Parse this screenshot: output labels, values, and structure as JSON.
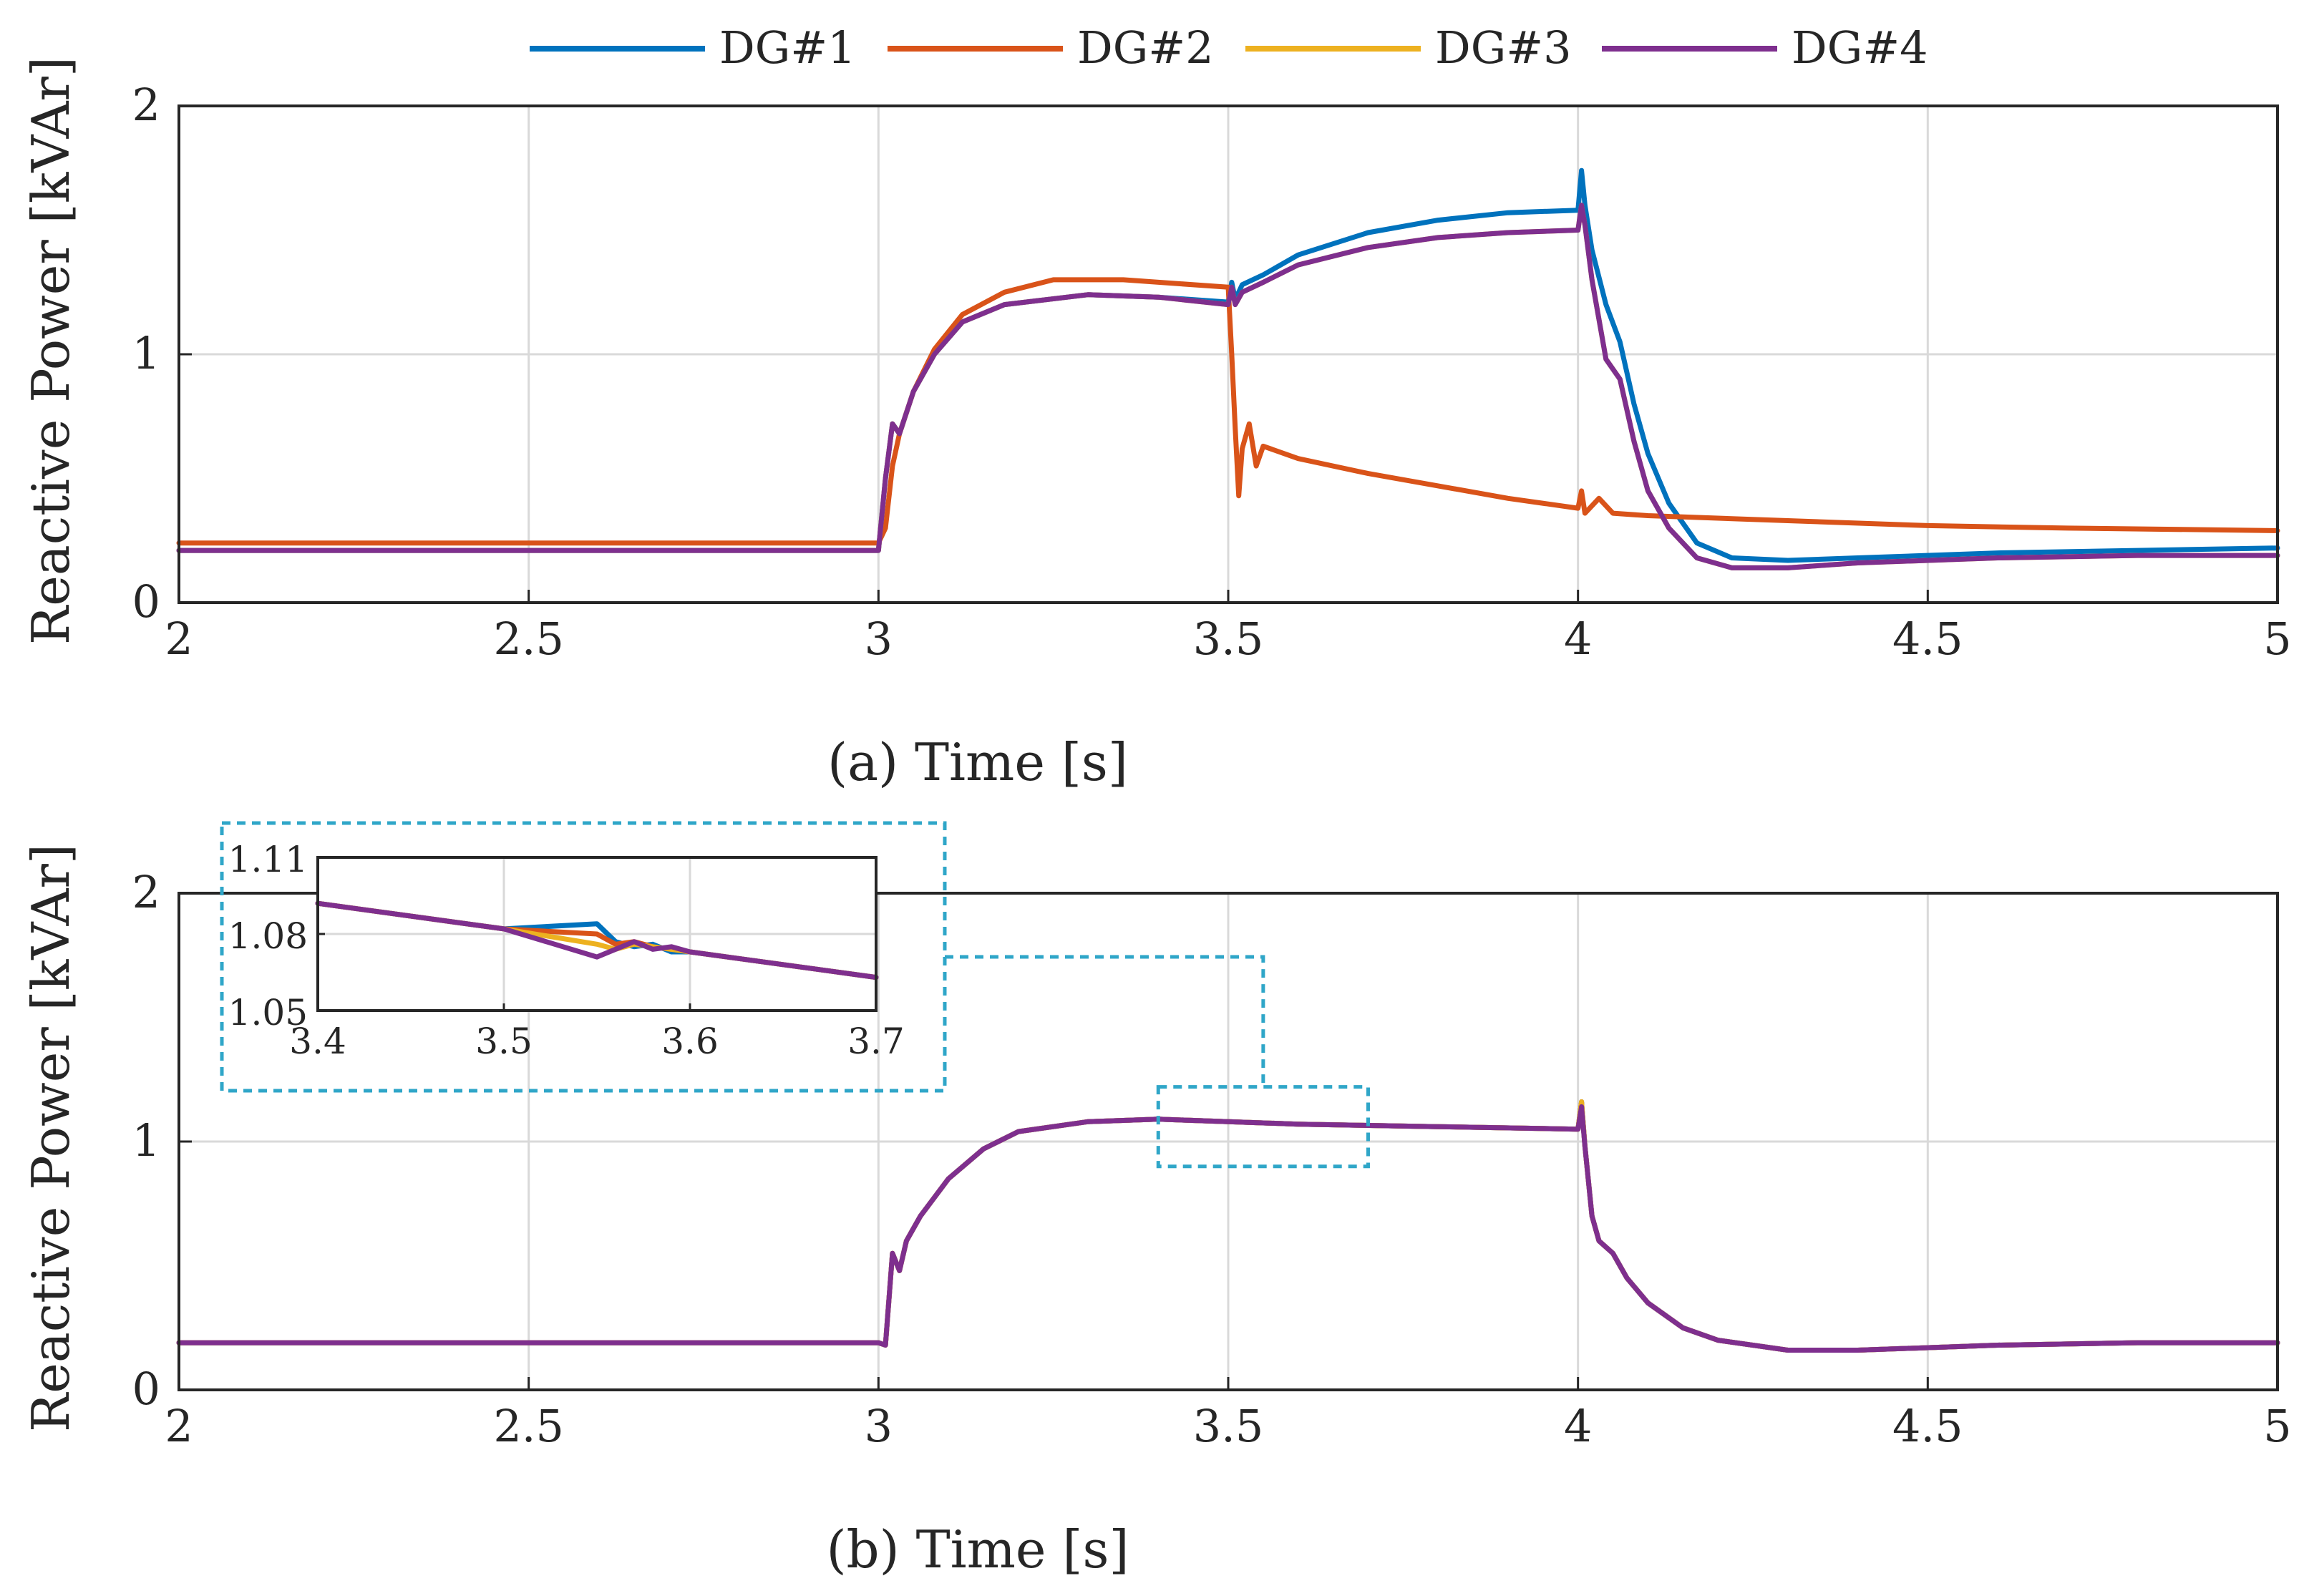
{
  "legend": [
    {
      "name": "DG#1",
      "color": "#0072BD"
    },
    {
      "name": "DG#2",
      "color": "#D95319"
    },
    {
      "name": "DG#3",
      "color": "#EDB120"
    },
    {
      "name": "DG#4",
      "color": "#7E2F8E"
    }
  ],
  "chart_data": [
    {
      "id": "a",
      "type": "line",
      "caption": "(a) Time [s]",
      "ylabel": "Reactive Power [kVAr]",
      "xlim": [
        2,
        5
      ],
      "ylim": [
        0,
        2
      ],
      "xticks": [
        2,
        2.5,
        3,
        3.5,
        4,
        4.5,
        5
      ],
      "xtick_labels": [
        "2",
        "2.5",
        "3",
        "3.5",
        "4",
        "4.5",
        "5"
      ],
      "yticks": [
        0,
        1,
        2
      ],
      "ytick_labels": [
        "0",
        "1",
        "2"
      ],
      "grid": true,
      "series": [
        {
          "name": "DG#1",
          "color": "#0072BD",
          "x": [
            2,
            3,
            3.01,
            3.02,
            3.03,
            3.05,
            3.08,
            3.12,
            3.18,
            3.3,
            3.4,
            3.5,
            3.505,
            3.51,
            3.52,
            3.55,
            3.6,
            3.7,
            3.8,
            3.9,
            4.0,
            4.005,
            4.01,
            4.02,
            4.04,
            4.06,
            4.08,
            4.1,
            4.13,
            4.17,
            4.22,
            4.3,
            4.4,
            4.6,
            4.8,
            5
          ],
          "y": [
            0.21,
            0.21,
            0.5,
            0.72,
            0.68,
            0.85,
            1.0,
            1.13,
            1.2,
            1.24,
            1.23,
            1.21,
            1.29,
            1.22,
            1.28,
            1.32,
            1.4,
            1.49,
            1.54,
            1.57,
            1.58,
            1.74,
            1.6,
            1.42,
            1.2,
            1.05,
            0.8,
            0.6,
            0.4,
            0.24,
            0.18,
            0.17,
            0.18,
            0.2,
            0.21,
            0.22
          ]
        },
        {
          "name": "DG#2",
          "color": "#D95319",
          "x": [
            2,
            3,
            3.01,
            3.02,
            3.03,
            3.05,
            3.08,
            3.12,
            3.18,
            3.25,
            3.35,
            3.5,
            3.505,
            3.51,
            3.515,
            3.52,
            3.53,
            3.54,
            3.55,
            3.6,
            3.7,
            3.8,
            3.9,
            4.0,
            4.005,
            4.01,
            4.03,
            4.05,
            4.1,
            4.2,
            4.3,
            4.5,
            4.7,
            5
          ],
          "y": [
            0.24,
            0.24,
            0.3,
            0.55,
            0.68,
            0.85,
            1.02,
            1.16,
            1.25,
            1.3,
            1.3,
            1.27,
            1.0,
            0.7,
            0.43,
            0.62,
            0.72,
            0.55,
            0.63,
            0.58,
            0.52,
            0.47,
            0.42,
            0.38,
            0.45,
            0.36,
            0.42,
            0.36,
            0.35,
            0.34,
            0.33,
            0.31,
            0.3,
            0.29
          ]
        },
        {
          "name": "DG#3",
          "color": "#EDB120",
          "x": [
            2,
            3,
            3.01,
            3.02,
            3.03,
            3.05,
            3.08,
            3.12,
            3.18,
            3.3,
            3.4,
            3.5,
            3.505,
            3.51,
            3.52,
            3.55,
            3.6,
            3.7,
            3.8,
            3.9,
            4.0,
            4.005,
            4.01,
            4.02,
            4.04,
            4.06,
            4.08,
            4.1,
            4.13,
            4.17,
            4.22,
            4.3,
            4.4,
            4.6,
            4.8,
            5
          ],
          "y": [
            0.21,
            0.21,
            0.5,
            0.72,
            0.68,
            0.85,
            1.0,
            1.13,
            1.2,
            1.24,
            1.23,
            1.2,
            1.27,
            1.2,
            1.25,
            1.29,
            1.36,
            1.43,
            1.47,
            1.49,
            1.5,
            1.6,
            1.52,
            1.3,
            0.98,
            0.9,
            0.65,
            0.45,
            0.3,
            0.18,
            0.14,
            0.14,
            0.16,
            0.18,
            0.19,
            0.19
          ]
        },
        {
          "name": "DG#4",
          "color": "#7E2F8E",
          "x": [
            2,
            3,
            3.01,
            3.02,
            3.03,
            3.05,
            3.08,
            3.12,
            3.18,
            3.3,
            3.4,
            3.5,
            3.505,
            3.51,
            3.52,
            3.55,
            3.6,
            3.7,
            3.8,
            3.9,
            4.0,
            4.005,
            4.01,
            4.02,
            4.04,
            4.06,
            4.08,
            4.1,
            4.13,
            4.17,
            4.22,
            4.3,
            4.4,
            4.6,
            4.8,
            5
          ],
          "y": [
            0.21,
            0.21,
            0.5,
            0.72,
            0.68,
            0.85,
            1.0,
            1.13,
            1.2,
            1.24,
            1.23,
            1.2,
            1.27,
            1.2,
            1.25,
            1.29,
            1.36,
            1.43,
            1.47,
            1.49,
            1.5,
            1.6,
            1.52,
            1.3,
            0.98,
            0.9,
            0.65,
            0.45,
            0.3,
            0.18,
            0.14,
            0.14,
            0.16,
            0.18,
            0.19,
            0.19
          ]
        }
      ]
    },
    {
      "id": "b",
      "type": "line",
      "caption": "(b) Time [s]",
      "ylabel": "Reactive Power [kVAr]",
      "xlim": [
        2,
        5
      ],
      "ylim": [
        0,
        2
      ],
      "xticks": [
        2,
        2.5,
        3,
        3.5,
        4,
        4.5,
        5
      ],
      "xtick_labels": [
        "2",
        "2.5",
        "3",
        "3.5",
        "4",
        "4.5",
        "5"
      ],
      "yticks": [
        0,
        1,
        2
      ],
      "ytick_labels": [
        "0",
        "1",
        "2"
      ],
      "grid": true,
      "zoom_region": {
        "x": [
          3.4,
          3.7
        ],
        "y": [
          0.9,
          1.22
        ]
      },
      "series": [
        {
          "name": "DG#1",
          "color": "#0072BD",
          "x": [
            2,
            3,
            3.01,
            3.02,
            3.03,
            3.04,
            3.06,
            3.1,
            3.15,
            3.2,
            3.3,
            3.4,
            3.5,
            3.6,
            3.8,
            4.0,
            4.005,
            4.01,
            4.02,
            4.03,
            4.05,
            4.07,
            4.1,
            4.15,
            4.2,
            4.3,
            4.4,
            4.6,
            4.8,
            5
          ],
          "y": [
            0.19,
            0.19,
            0.18,
            0.55,
            0.48,
            0.6,
            0.7,
            0.85,
            0.97,
            1.04,
            1.08,
            1.09,
            1.08,
            1.07,
            1.06,
            1.05,
            1.16,
            0.98,
            0.7,
            0.6,
            0.55,
            0.45,
            0.35,
            0.25,
            0.2,
            0.16,
            0.16,
            0.18,
            0.19,
            0.19
          ]
        },
        {
          "name": "DG#2",
          "color": "#D95319",
          "x": [
            2,
            3,
            3.01,
            3.02,
            3.03,
            3.04,
            3.06,
            3.1,
            3.15,
            3.2,
            3.3,
            3.4,
            3.5,
            3.6,
            3.8,
            4.0,
            4.005,
            4.01,
            4.02,
            4.03,
            4.05,
            4.07,
            4.1,
            4.15,
            4.2,
            4.3,
            4.4,
            4.6,
            4.8,
            5
          ],
          "y": [
            0.19,
            0.19,
            0.18,
            0.55,
            0.48,
            0.6,
            0.7,
            0.85,
            0.97,
            1.04,
            1.08,
            1.09,
            1.08,
            1.07,
            1.06,
            1.05,
            1.16,
            0.98,
            0.7,
            0.6,
            0.55,
            0.45,
            0.35,
            0.25,
            0.2,
            0.16,
            0.16,
            0.18,
            0.19,
            0.19
          ]
        },
        {
          "name": "DG#3",
          "color": "#EDB120",
          "x": [
            2,
            3,
            3.01,
            3.02,
            3.03,
            3.04,
            3.06,
            3.1,
            3.15,
            3.2,
            3.3,
            3.4,
            3.5,
            3.6,
            3.8,
            4.0,
            4.005,
            4.01,
            4.02,
            4.03,
            4.05,
            4.07,
            4.1,
            4.15,
            4.2,
            4.3,
            4.4,
            4.6,
            4.8,
            5
          ],
          "y": [
            0.19,
            0.19,
            0.18,
            0.55,
            0.48,
            0.6,
            0.7,
            0.85,
            0.97,
            1.04,
            1.08,
            1.09,
            1.08,
            1.07,
            1.06,
            1.05,
            1.16,
            0.98,
            0.7,
            0.6,
            0.55,
            0.45,
            0.35,
            0.25,
            0.2,
            0.16,
            0.16,
            0.18,
            0.19,
            0.19
          ]
        },
        {
          "name": "DG#4",
          "color": "#7E2F8E",
          "x": [
            2,
            3,
            3.01,
            3.02,
            3.03,
            3.04,
            3.06,
            3.1,
            3.15,
            3.2,
            3.3,
            3.4,
            3.5,
            3.6,
            3.8,
            4.0,
            4.005,
            4.01,
            4.02,
            4.03,
            4.05,
            4.07,
            4.1,
            4.15,
            4.2,
            4.3,
            4.4,
            4.6,
            4.8,
            5
          ],
          "y": [
            0.19,
            0.19,
            0.18,
            0.55,
            0.48,
            0.6,
            0.7,
            0.85,
            0.97,
            1.04,
            1.08,
            1.09,
            1.08,
            1.07,
            1.06,
            1.05,
            1.14,
            0.98,
            0.7,
            0.6,
            0.55,
            0.45,
            0.35,
            0.25,
            0.2,
            0.16,
            0.16,
            0.18,
            0.19,
            0.19
          ]
        }
      ]
    },
    {
      "id": "inset",
      "type": "line",
      "xlim": [
        3.4,
        3.7
      ],
      "ylim": [
        1.05,
        1.11
      ],
      "xticks": [
        3.4,
        3.5,
        3.6,
        3.7
      ],
      "xtick_labels": [
        "3.4",
        "3.5",
        "3.6",
        "3.7"
      ],
      "yticks": [
        1.05,
        1.08,
        1.11
      ],
      "ytick_labels": [
        "1.05",
        "1.08",
        "1.11"
      ],
      "grid": true,
      "series": [
        {
          "name": "DG#1",
          "color": "#0072BD",
          "x": [
            3.4,
            3.5,
            3.55,
            3.56,
            3.57,
            3.58,
            3.59,
            3.6,
            3.7
          ],
          "y": [
            1.092,
            1.082,
            1.084,
            1.077,
            1.075,
            1.076,
            1.073,
            1.073,
            1.063
          ]
        },
        {
          "name": "DG#2",
          "color": "#D95319",
          "x": [
            3.4,
            3.5,
            3.55,
            3.56,
            3.57,
            3.58,
            3.59,
            3.6,
            3.7
          ],
          "y": [
            1.092,
            1.082,
            1.08,
            1.076,
            1.077,
            1.075,
            1.074,
            1.073,
            1.063
          ]
        },
        {
          "name": "DG#3",
          "color": "#EDB120",
          "x": [
            3.4,
            3.5,
            3.55,
            3.56,
            3.57,
            3.58,
            3.59,
            3.6,
            3.7
          ],
          "y": [
            1.092,
            1.082,
            1.076,
            1.074,
            1.076,
            1.075,
            1.074,
            1.073,
            1.063
          ]
        },
        {
          "name": "DG#4",
          "color": "#7E2F8E",
          "x": [
            3.4,
            3.5,
            3.55,
            3.56,
            3.57,
            3.58,
            3.59,
            3.6,
            3.7
          ],
          "y": [
            1.092,
            1.082,
            1.071,
            1.074,
            1.077,
            1.074,
            1.075,
            1.073,
            1.063
          ]
        }
      ]
    }
  ]
}
